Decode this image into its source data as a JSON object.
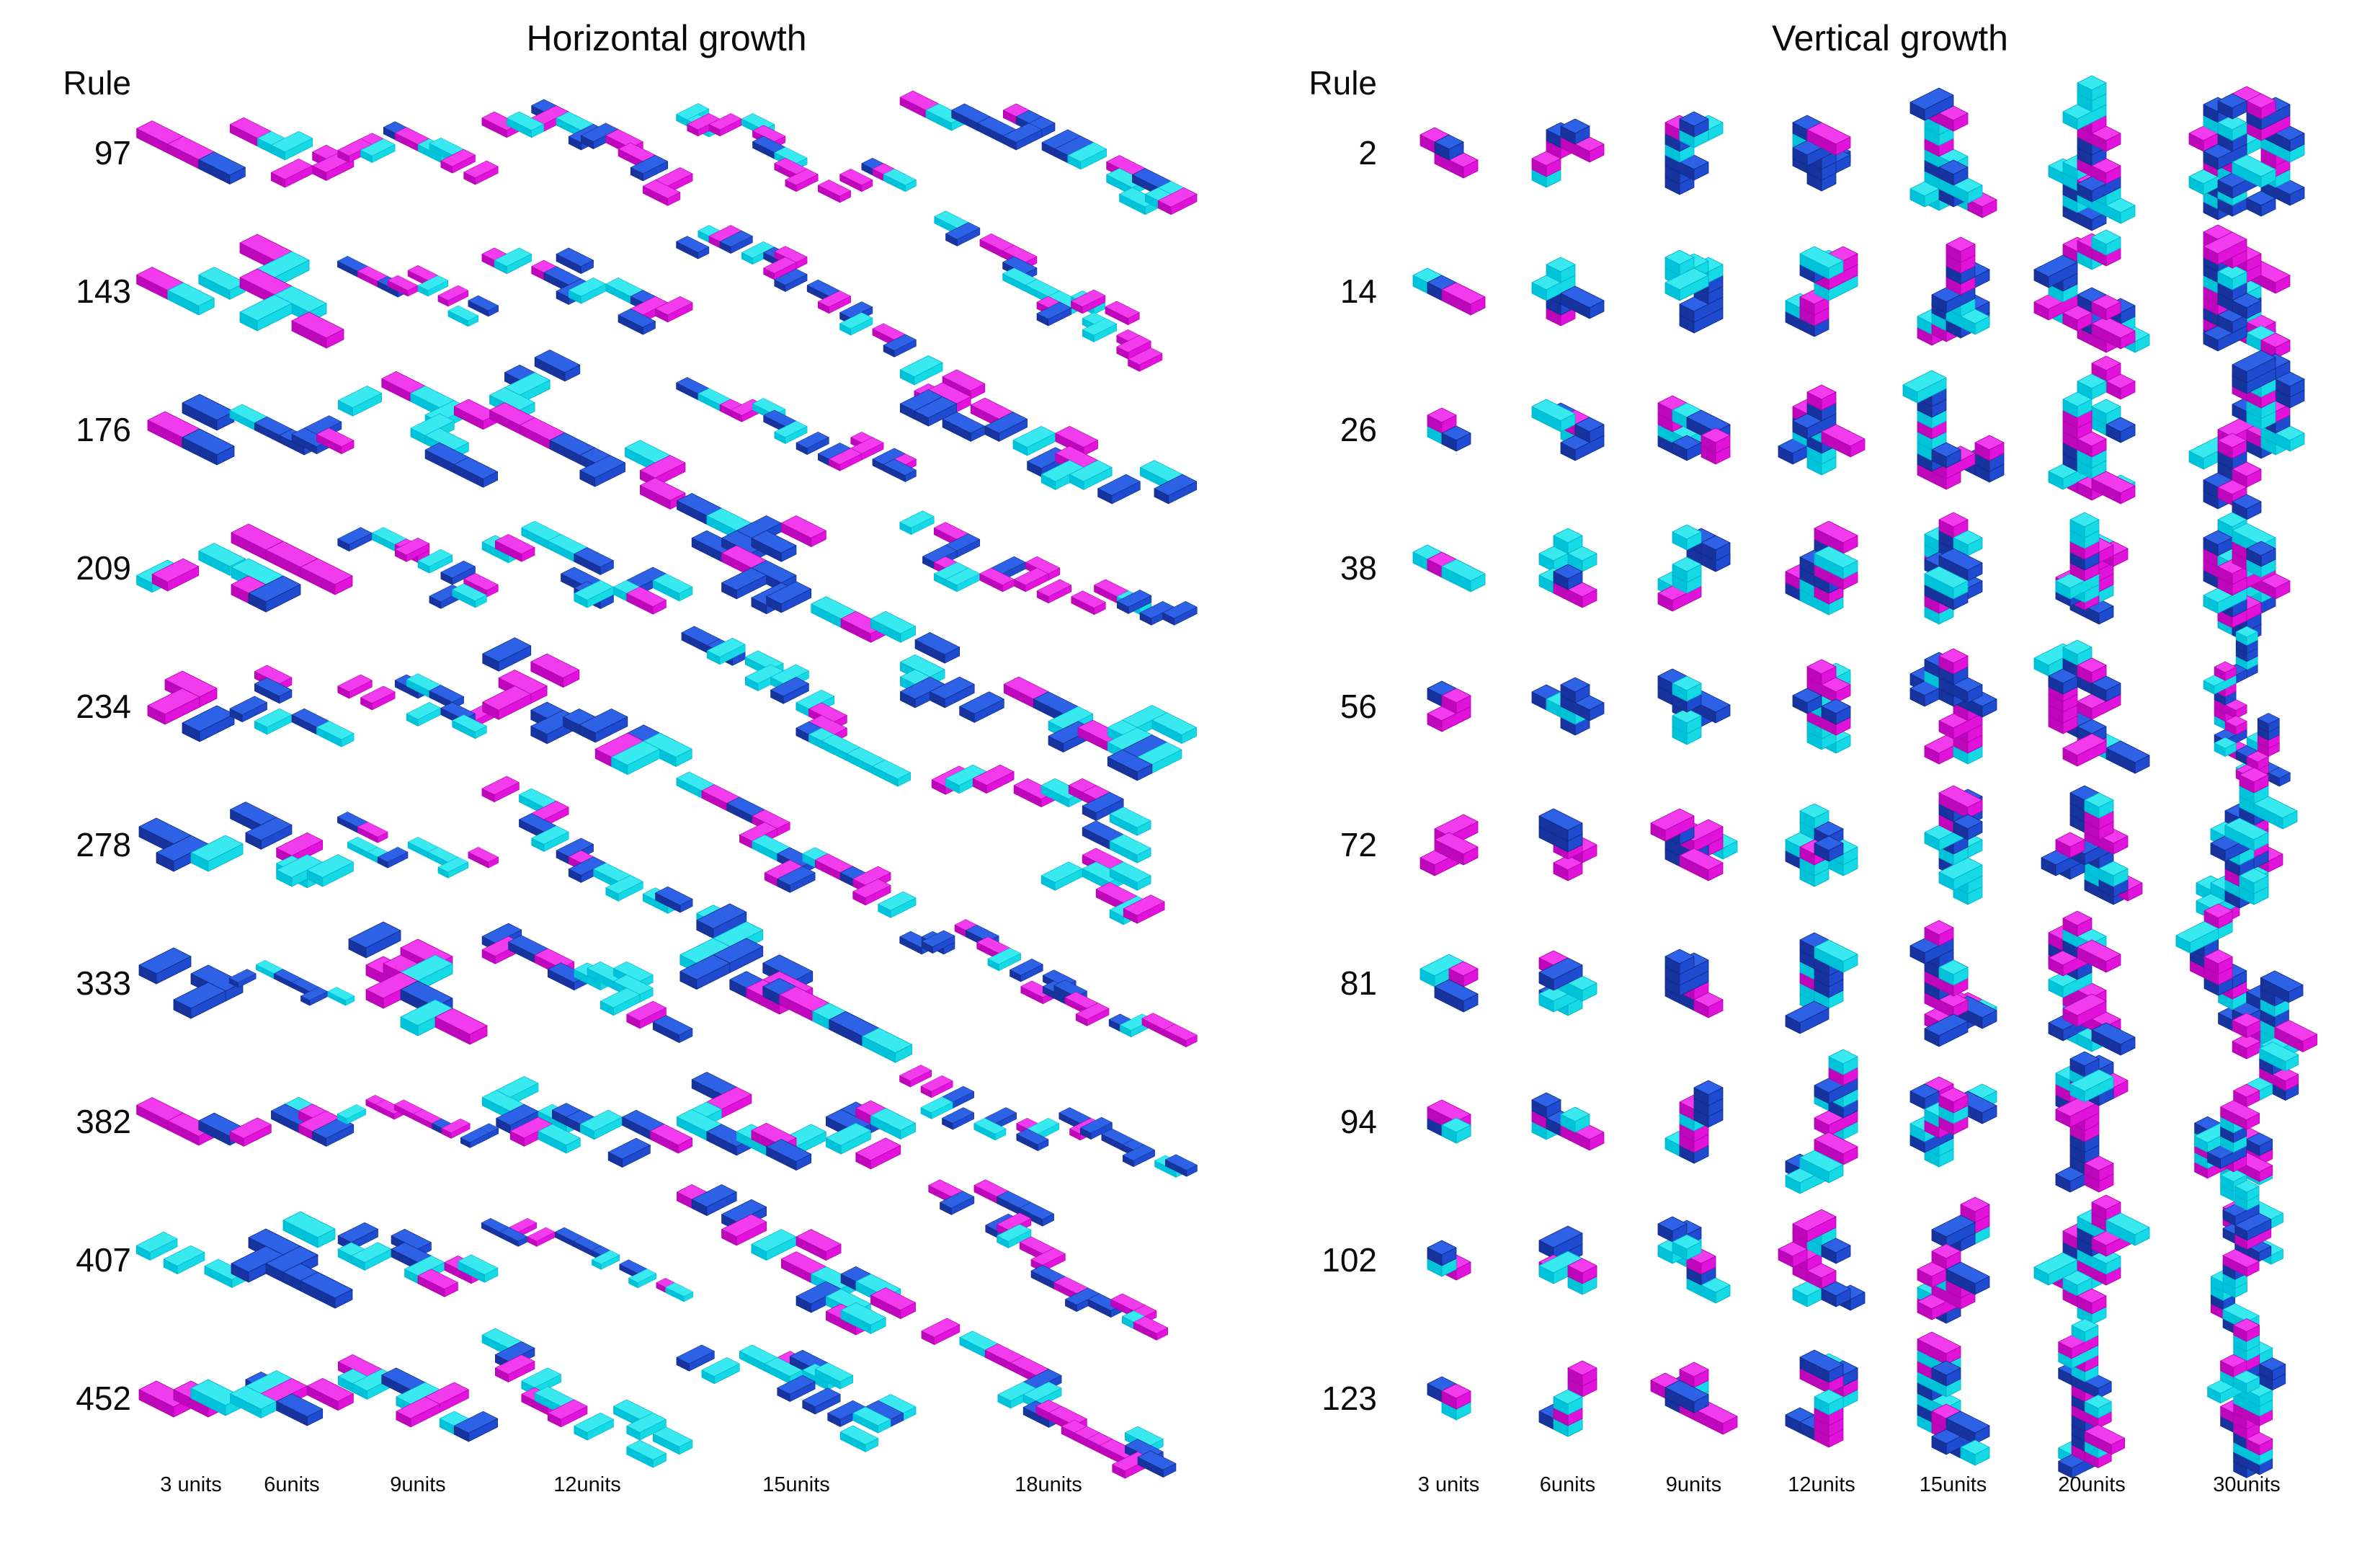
{
  "figure": {
    "background": "#ffffff",
    "panels": [
      {
        "title": "Horizontal growth",
        "growth": "horizontal",
        "rule_header": "Rule",
        "rules": [
          "97",
          "143",
          "176",
          "209",
          "234",
          "278",
          "333",
          "382",
          "407",
          "452"
        ],
        "columns": [
          {
            "label": "3 units",
            "units": 3
          },
          {
            "label": "6units",
            "units": 6
          },
          {
            "label": "9units",
            "units": 9
          },
          {
            "label": "12units",
            "units": 12
          },
          {
            "label": "15units",
            "units": 15
          },
          {
            "label": "18units",
            "units": 18
          }
        ]
      },
      {
        "title": "Vertical growth",
        "growth": "vertical",
        "rule_header": "Rule",
        "rules": [
          "2",
          "14",
          "26",
          "38",
          "56",
          "72",
          "81",
          "94",
          "102",
          "123"
        ],
        "columns": [
          {
            "label": "3 units",
            "units": 3
          },
          {
            "label": "6units",
            "units": 6
          },
          {
            "label": "9units",
            "units": 9
          },
          {
            "label": "12units",
            "units": 12
          },
          {
            "label": "15units",
            "units": 15
          },
          {
            "label": "20units",
            "units": 20
          },
          {
            "label": "30units",
            "units": 30
          }
        ]
      }
    ],
    "unit_colors": {
      "cyan": {
        "top": "#38E9F0",
        "left": "#00C2D8",
        "right": "#15D9E4",
        "edge": "#00b2c8"
      },
      "magenta": {
        "top": "#F23BEC",
        "left": "#BE06BA",
        "right": "#E112DA",
        "edge": "#b003ac"
      },
      "blue": {
        "top": "#2E62E6",
        "left": "#16339E",
        "right": "#1F4BD0",
        "edge": "#122b86"
      }
    }
  }
}
